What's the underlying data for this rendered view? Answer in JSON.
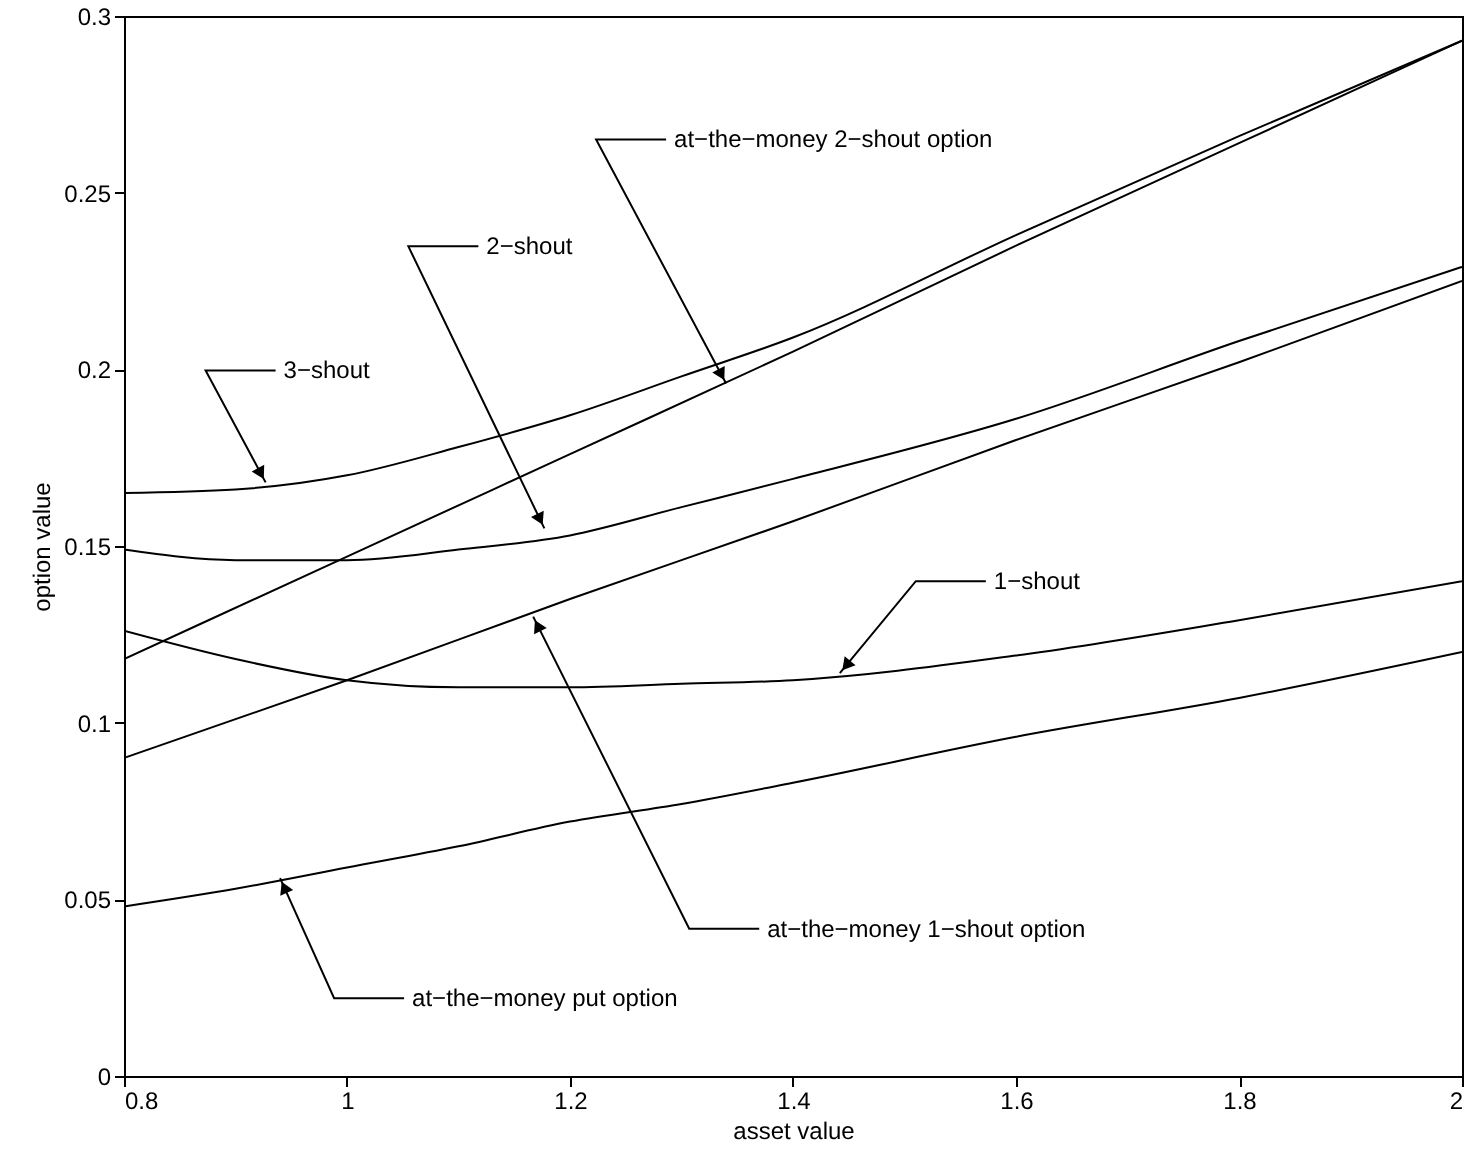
{
  "chart_data": {
    "type": "line",
    "xlabel": "asset value",
    "ylabel": "option value",
    "xlim": [
      0.8,
      2
    ],
    "ylim": [
      0,
      0.3
    ],
    "xticks": [
      0.8,
      1,
      1.2,
      1.4,
      1.6,
      1.8,
      2
    ],
    "yticks": [
      0,
      0.05,
      0.1,
      0.15,
      0.2,
      0.25,
      0.3
    ],
    "grid": false,
    "line_style": "solid",
    "marker": "none",
    "x": [
      0.8,
      0.9,
      1.0,
      1.1,
      1.2,
      1.3,
      1.4,
      1.6,
      1.8,
      2.0
    ],
    "series": [
      {
        "color": "#000000",
        "values": [
          0.165,
          0.166,
          0.17,
          0.178,
          0.187,
          0.198,
          0.209,
          0.238,
          0.266,
          0.293
        ]
      },
      {
        "color": "#000000",
        "x": [
          0.8,
          1.0,
          1.2,
          1.4,
          1.6,
          1.8,
          2.0
        ],
        "values": [
          0.118,
          0.147,
          0.176,
          0.205,
          0.235,
          0.264,
          0.293
        ]
      },
      {
        "color": "#000000",
        "values": [
          0.149,
          0.146,
          0.146,
          0.149,
          0.153,
          0.161,
          0.169,
          0.186,
          0.208,
          0.229
        ]
      },
      {
        "color": "#000000",
        "x": [
          0.8,
          1.0,
          1.2,
          1.4,
          1.6,
          1.8,
          2.0
        ],
        "values": [
          0.09,
          0.112,
          0.135,
          0.157,
          0.18,
          0.202,
          0.225
        ]
      },
      {
        "color": "#000000",
        "values": [
          0.126,
          0.118,
          0.112,
          0.11,
          0.11,
          0.111,
          0.112,
          0.119,
          0.129,
          0.14
        ]
      },
      {
        "color": "#000000",
        "values": [
          0.048,
          0.053,
          0.059,
          0.065,
          0.072,
          0.077,
          0.083,
          0.096,
          0.107,
          0.12
        ]
      }
    ],
    "annotations": [
      {
        "text": "3−shout",
        "x": 0.927,
        "y": 0.168
      },
      {
        "text": "2−shout",
        "x": 1.177,
        "y": 0.155
      },
      {
        "text": "at−the−money 2−shout option",
        "x": 1.34,
        "y": 0.196
      },
      {
        "text": "1−shout",
        "x": 1.442,
        "y": 0.114
      },
      {
        "text": "at−the−money 1−shout option",
        "x": 1.167,
        "y": 0.13
      },
      {
        "text": "at−the−money put option",
        "x": 0.94,
        "y": 0.056
      }
    ]
  }
}
